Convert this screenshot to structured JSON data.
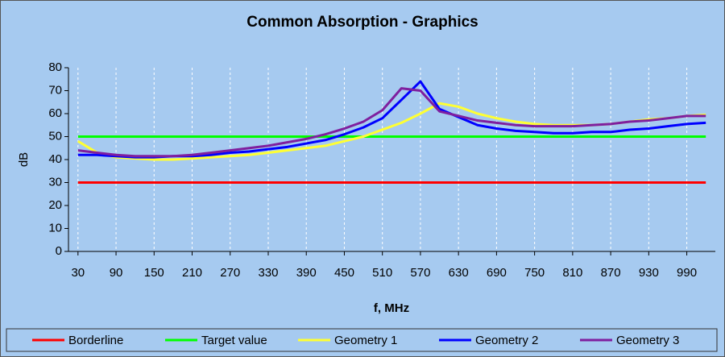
{
  "chart_data": {
    "type": "line",
    "title": "Common Absorption - Graphics",
    "xlabel": "f, MHz",
    "ylabel": "dB",
    "x": [
      30,
      60,
      90,
      120,
      150,
      180,
      210,
      240,
      270,
      300,
      330,
      360,
      390,
      420,
      450,
      480,
      510,
      540,
      570,
      600,
      630,
      660,
      690,
      720,
      750,
      780,
      810,
      840,
      870,
      900,
      930,
      960,
      990,
      1020
    ],
    "xlim": [
      15,
      1035
    ],
    "xticks": [
      30,
      90,
      150,
      210,
      270,
      330,
      390,
      450,
      510,
      570,
      630,
      690,
      750,
      810,
      870,
      930,
      990
    ],
    "ylim": [
      0,
      80
    ],
    "yticks": [
      0,
      10,
      20,
      30,
      40,
      50,
      60,
      70,
      80
    ],
    "grid": true,
    "legend": "bottom",
    "series": [
      {
        "name": "Borderline",
        "color": "#ff0000",
        "values": [
          30,
          30,
          30,
          30,
          30,
          30,
          30,
          30,
          30,
          30,
          30,
          30,
          30,
          30,
          30,
          30,
          30,
          30,
          30,
          30,
          30,
          30,
          30,
          30,
          30,
          30,
          30,
          30,
          30,
          30,
          30,
          30,
          30,
          30
        ]
      },
      {
        "name": "Target value",
        "color": "#00ff00",
        "values": [
          50,
          50,
          50,
          50,
          50,
          50,
          50,
          50,
          50,
          50,
          50,
          50,
          50,
          50,
          50,
          50,
          50,
          50,
          50,
          50,
          50,
          50,
          50,
          50,
          50,
          50,
          50,
          50,
          50,
          50,
          50,
          50,
          50,
          50
        ]
      },
      {
        "name": "Geometry 1",
        "color": "#ffff33",
        "values": [
          48,
          43,
          41,
          40.5,
          40,
          40,
          40.5,
          41,
          41.5,
          42,
          43,
          44,
          45,
          46,
          48,
          50,
          53,
          56,
          60,
          64.5,
          63,
          60,
          58,
          56.5,
          55.5,
          55,
          55,
          55,
          55.5,
          56.5,
          57.5,
          58,
          59,
          59.5
        ]
      },
      {
        "name": "Geometry 2",
        "color": "#0000ff",
        "values": [
          42,
          42,
          41.5,
          41,
          41,
          41.5,
          41.5,
          42,
          43,
          43.5,
          44.5,
          45.5,
          47,
          48.5,
          51,
          54,
          58,
          66,
          74,
          62,
          58.5,
          55,
          53.5,
          52.5,
          52,
          51.5,
          51.5,
          52,
          52,
          53,
          53.5,
          54.5,
          55.5,
          56
        ]
      },
      {
        "name": "Geometry 3",
        "color": "#7f1f9f",
        "values": [
          44,
          43,
          42,
          41.5,
          41.5,
          41.5,
          42,
          43,
          44,
          45,
          46,
          47.5,
          49,
          51,
          53.5,
          56.5,
          61.5,
          71,
          70,
          61,
          59,
          57,
          56,
          55,
          54.5,
          54.5,
          54.5,
          55,
          55.5,
          56.5,
          57,
          58,
          59,
          59
        ]
      }
    ]
  }
}
